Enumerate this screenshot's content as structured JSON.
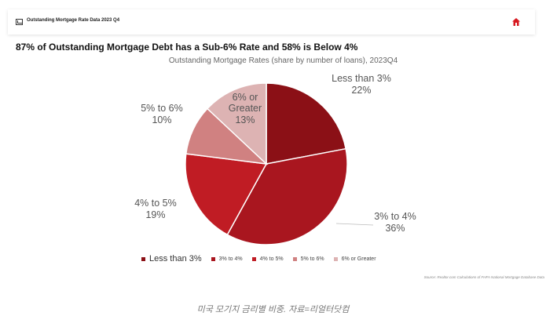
{
  "topbar": {
    "title": "Outstanding Mortgage Rate Data 2023 Q4",
    "icons": [
      "chart-icon",
      "home-icon"
    ]
  },
  "headline": "87% of Outstanding Mortgage Debt has a Sub-6% Rate and 58% is Below 4%",
  "source": "Source: Realtor.com Calculations of FHFA National Mortgage Database Data",
  "caption": "미국 모기지 금리별 비중. 자료=리얼터닷컴",
  "colors": {
    "home_icon": "#d71920"
  },
  "chart_data": {
    "type": "pie",
    "title": "Outstanding Mortgage Rates (share by number of loans), 2023Q4",
    "categories": [
      "Less than 3%",
      "3% to 4%",
      "4% to 5%",
      "5% to 6%",
      "6% or Greater"
    ],
    "values": [
      22,
      36,
      19,
      10,
      13
    ],
    "value_labels": [
      "22%",
      "36%",
      "19%",
      "10%",
      "13%"
    ],
    "colors": [
      "#8b1016",
      "#a9161f",
      "#c01c24",
      "#d08181",
      "#ddb3b3"
    ],
    "start": "12 o'clock",
    "direction": "clockwise",
    "legend": "bottom"
  }
}
